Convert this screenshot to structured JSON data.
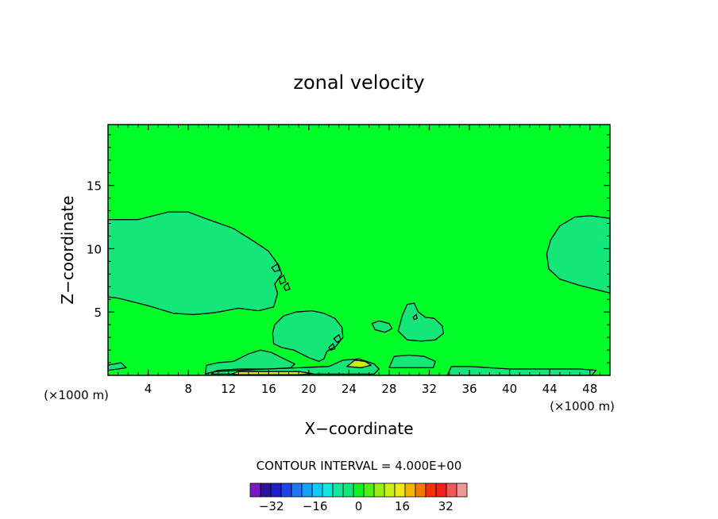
{
  "chart_data": {
    "type": "heatmap",
    "title": "zonal velocity",
    "xlabel": "X−coordinate",
    "ylabel": "Z−coordinate",
    "x_unit_label": "(×1000 m)",
    "xlim": [
      0,
      50
    ],
    "ylim": [
      0,
      19.8
    ],
    "x_ticks": [
      "4",
      "8",
      "12",
      "16",
      "20",
      "24",
      "28",
      "32",
      "36",
      "40",
      "44",
      "48"
    ],
    "x_tick_values": [
      4,
      8,
      12,
      16,
      20,
      24,
      28,
      32,
      36,
      40,
      44,
      48
    ],
    "y_ticks": [
      "5",
      "10",
      "15"
    ],
    "y_tick_values": [
      5,
      10,
      15
    ],
    "contour_interval_text": "CONTOUR INTERVAL = 4.000E+00",
    "contour_interval": 4.0,
    "background_level": 0,
    "regions": [
      {
        "name": "upper-left-region",
        "level": 4,
        "points": [
          [
            0,
            12.3
          ],
          [
            3,
            12.3
          ],
          [
            6,
            12.9
          ],
          [
            8,
            12.9
          ],
          [
            10,
            12.3
          ],
          [
            12.5,
            11.6
          ],
          [
            14.5,
            10.6
          ],
          [
            16,
            9.8
          ],
          [
            17,
            8.7
          ],
          [
            17.3,
            8.0
          ],
          [
            16.6,
            7.2
          ],
          [
            16.9,
            6.5
          ],
          [
            16.5,
            5.4
          ],
          [
            15,
            5.1
          ],
          [
            13,
            5.3
          ],
          [
            11,
            5.0
          ],
          [
            10,
            4.9
          ],
          [
            8.5,
            4.8
          ],
          [
            6.5,
            4.9
          ],
          [
            4,
            5.5
          ],
          [
            1,
            6.1
          ],
          [
            0,
            6.2
          ]
        ]
      },
      {
        "name": "right-region",
        "level": 4,
        "points": [
          [
            50,
            12.4
          ],
          [
            48,
            12.6
          ],
          [
            46.5,
            12.5
          ],
          [
            45,
            11.8
          ],
          [
            44.1,
            10.7
          ],
          [
            43.7,
            9.6
          ],
          [
            43.9,
            8.4
          ],
          [
            45,
            7.6
          ],
          [
            47,
            7.1
          ],
          [
            48.5,
            6.8
          ],
          [
            50,
            6.5
          ]
        ]
      },
      {
        "name": "center-region",
        "level": 4,
        "points": [
          [
            16.6,
            4.0
          ],
          [
            17.5,
            4.7
          ],
          [
            18.7,
            5.0
          ],
          [
            20.3,
            5.1
          ],
          [
            21.5,
            4.9
          ],
          [
            22.6,
            4.5
          ],
          [
            23.3,
            3.8
          ],
          [
            23.4,
            3.0
          ],
          [
            22.7,
            2.3
          ],
          [
            21.8,
            1.9
          ],
          [
            21.5,
            1.3
          ],
          [
            21,
            1.1
          ],
          [
            20,
            1.4
          ],
          [
            18.5,
            2.0
          ],
          [
            17.3,
            2.2
          ],
          [
            16.5,
            2.5
          ],
          [
            16.4,
            3.3
          ]
        ]
      },
      {
        "name": "mid-right-region",
        "level": 4,
        "points": [
          [
            28.9,
            3.5
          ],
          [
            29.3,
            4.7
          ],
          [
            29.8,
            5.6
          ],
          [
            30.5,
            5.7
          ],
          [
            30.9,
            5.0
          ],
          [
            31.6,
            4.6
          ],
          [
            32.5,
            4.5
          ],
          [
            33.3,
            3.9
          ],
          [
            33.4,
            3.3
          ],
          [
            32.6,
            2.8
          ],
          [
            31.2,
            2.7
          ],
          [
            29.8,
            2.8
          ]
        ]
      },
      {
        "name": "small-blob-region",
        "level": 4,
        "points": [
          [
            26.3,
            4.1
          ],
          [
            27,
            4.3
          ],
          [
            28,
            4.1
          ],
          [
            28.3,
            3.7
          ],
          [
            27.6,
            3.4
          ],
          [
            26.6,
            3.6
          ]
        ]
      },
      {
        "name": "bottom-strip-1",
        "level": 4,
        "points": [
          [
            9.7,
            0.1
          ],
          [
            9.8,
            0.8
          ],
          [
            11,
            1.0
          ],
          [
            12.5,
            1.1
          ],
          [
            14,
            1.7
          ],
          [
            15.2,
            2.0
          ],
          [
            16.3,
            1.8
          ],
          [
            17.8,
            1.2
          ],
          [
            18.6,
            0.9
          ],
          [
            18.2,
            0.6
          ],
          [
            16,
            0.5
          ],
          [
            13,
            0.5
          ],
          [
            11,
            0.4
          ]
        ]
      },
      {
        "name": "bottom-strip-2",
        "level": 4,
        "points": [
          [
            10.3,
            0.1
          ],
          [
            10.6,
            0.3
          ],
          [
            16,
            0.5
          ],
          [
            22,
            0.7
          ],
          [
            23.4,
            1.2
          ],
          [
            25,
            1.3
          ],
          [
            26.5,
            0.9
          ],
          [
            27,
            0.5
          ],
          [
            26.5,
            0.1
          ]
        ]
      },
      {
        "name": "bottom-strip-3",
        "level": 4,
        "points": [
          [
            28,
            0.6
          ],
          [
            28.5,
            1.5
          ],
          [
            30,
            1.6
          ],
          [
            31.5,
            1.5
          ],
          [
            32.6,
            1.1
          ],
          [
            32.4,
            0.6
          ],
          [
            31,
            0.6
          ]
        ]
      },
      {
        "name": "bottom-strip-4",
        "level": 4,
        "points": [
          [
            33.8,
            0
          ],
          [
            34.2,
            0.7
          ],
          [
            36,
            0.7
          ],
          [
            40,
            0.5
          ],
          [
            43,
            0.5
          ],
          [
            47,
            0.5
          ],
          [
            48.6,
            0.4
          ],
          [
            48.2,
            0
          ]
        ]
      },
      {
        "name": "left-edge-strip",
        "level": 4,
        "points": [
          [
            0,
            0.8
          ],
          [
            1.3,
            1.0
          ],
          [
            1.8,
            0.6
          ],
          [
            1,
            0.5
          ],
          [
            0,
            0.4
          ]
        ]
      },
      {
        "name": "yellow-streak-1",
        "level": 8,
        "points": [
          [
            23.8,
            0.7
          ],
          [
            24.6,
            1.2
          ],
          [
            25.6,
            1.1
          ],
          [
            26.2,
            0.8
          ],
          [
            25.2,
            0.6
          ]
        ]
      },
      {
        "name": "yellow-streak-2",
        "level": 8,
        "points": [
          [
            12.3,
            0.1
          ],
          [
            13,
            0.3
          ],
          [
            19,
            0.3
          ],
          [
            20.3,
            0.15
          ],
          [
            19,
            0.05
          ],
          [
            13,
            0.05
          ]
        ]
      }
    ],
    "contour_loops": [
      {
        "name": "small-loop",
        "points": [
          [
            16.3,
            8.5
          ],
          [
            16.9,
            8.8
          ],
          [
            17.1,
            8.3
          ],
          [
            16.6,
            8.2
          ]
        ]
      },
      {
        "name": "small-loop",
        "points": [
          [
            17,
            7.6
          ],
          [
            17.5,
            7.9
          ],
          [
            17.7,
            7.4
          ],
          [
            17.2,
            7.2
          ]
        ]
      },
      {
        "name": "small-loop",
        "points": [
          [
            17.5,
            7.0
          ],
          [
            17.9,
            7.3
          ],
          [
            18.1,
            6.8
          ],
          [
            17.7,
            6.7
          ]
        ]
      },
      {
        "name": "small-loop",
        "points": [
          [
            22.5,
            2.9
          ],
          [
            23,
            3.2
          ],
          [
            23.2,
            2.8
          ],
          [
            22.8,
            2.6
          ]
        ]
      },
      {
        "name": "small-loop",
        "points": [
          [
            22.0,
            2.2
          ],
          [
            22.4,
            2.5
          ],
          [
            22.6,
            2.1
          ],
          [
            22.2,
            2.0
          ]
        ]
      },
      {
        "name": "small-loop",
        "points": [
          [
            30.4,
            4.6
          ],
          [
            30.7,
            4.8
          ],
          [
            30.8,
            4.5
          ],
          [
            30.5,
            4.4
          ]
        ]
      }
    ],
    "colorbar": {
      "levels": [
        -36,
        -32,
        -28,
        -24,
        -20,
        -16,
        -12,
        -8,
        -4,
        0,
        4,
        8,
        12,
        16,
        20,
        24,
        28,
        32,
        36
      ],
      "colors": [
        "#7a19c4",
        "#2a1498",
        "#1e1ec4",
        "#1e46e6",
        "#1e78f0",
        "#14a0ff",
        "#12c8ff",
        "#14e6e0",
        "#14e6a0",
        "#14e678",
        "#14f028",
        "#50f014",
        "#96f014",
        "#c8f014",
        "#f0e61e",
        "#f5b400",
        "#f57800",
        "#f53200",
        "#f01e1e",
        "#f05a5a",
        "#f09696"
      ],
      "labels": [
        "−32",
        "−16",
        "0",
        "16",
        "32"
      ],
      "label_values": [
        -32,
        -16,
        0,
        16,
        32
      ]
    },
    "colors": {
      "level_0": "#00ff28",
      "level_4": "#14e678",
      "level_8": "#c8f014"
    }
  }
}
